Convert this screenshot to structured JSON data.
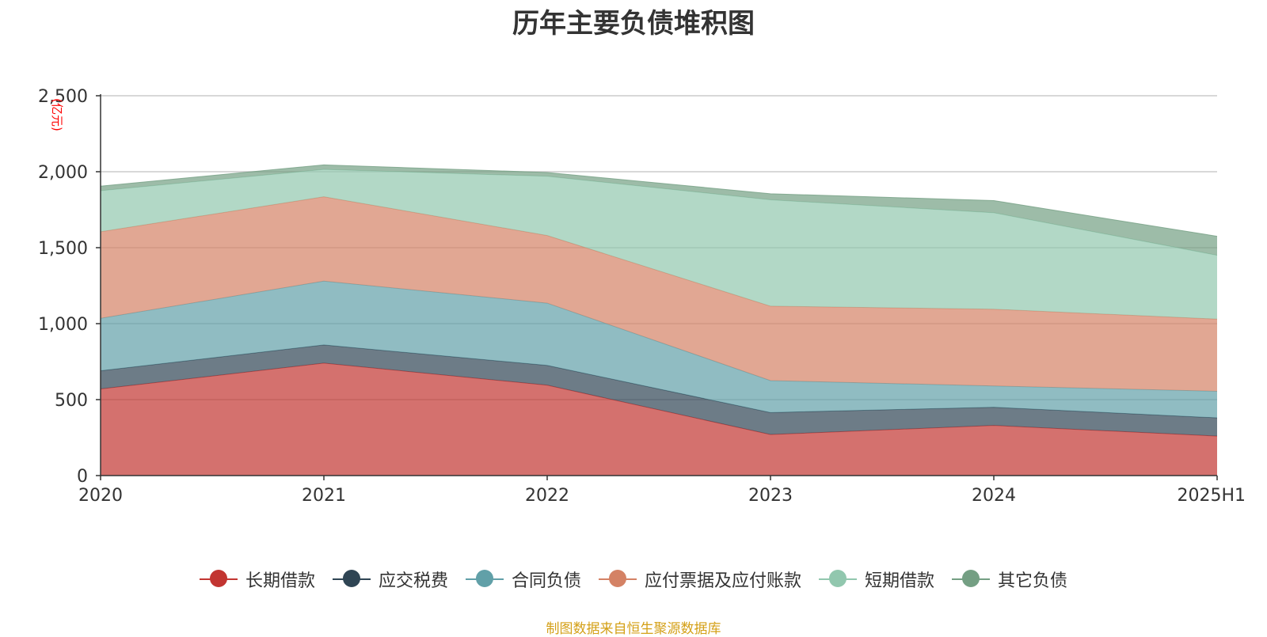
{
  "chart_data": {
    "type": "area",
    "stacked": true,
    "title": "历年主要负债堆积图",
    "unit_label": "(亿元)",
    "categories": [
      "2020",
      "2021",
      "2022",
      "2023",
      "2024",
      "2025H1"
    ],
    "ylim": [
      0,
      2500
    ],
    "yticks": [
      "0",
      "500",
      "1,000",
      "1,500",
      "2,000",
      "2,500"
    ],
    "ytick_values": [
      0,
      500,
      1000,
      1500,
      2000,
      2500
    ],
    "grid": true,
    "legend_position": "bottom",
    "series": [
      {
        "name": "长期借款",
        "color": "#c23531",
        "values": [
          570,
          740,
          595,
          270,
          330,
          260
        ]
      },
      {
        "name": "应交税费",
        "color": "#2f4554",
        "values": [
          120,
          120,
          130,
          145,
          120,
          120
        ]
      },
      {
        "name": "合同负债",
        "color": "#61a0a8",
        "values": [
          345,
          420,
          410,
          210,
          140,
          175
        ]
      },
      {
        "name": "应付票据及应付账款",
        "color": "#d48265",
        "values": [
          570,
          555,
          445,
          490,
          505,
          475
        ]
      },
      {
        "name": "短期借款",
        "color": "#91c7ae",
        "values": [
          270,
          180,
          390,
          700,
          635,
          420
        ]
      },
      {
        "name": "其它负债",
        "color": "#749f83",
        "values": [
          30,
          30,
          25,
          40,
          80,
          125
        ]
      }
    ]
  },
  "source_text": "制图数据来自恒生聚源数据库"
}
